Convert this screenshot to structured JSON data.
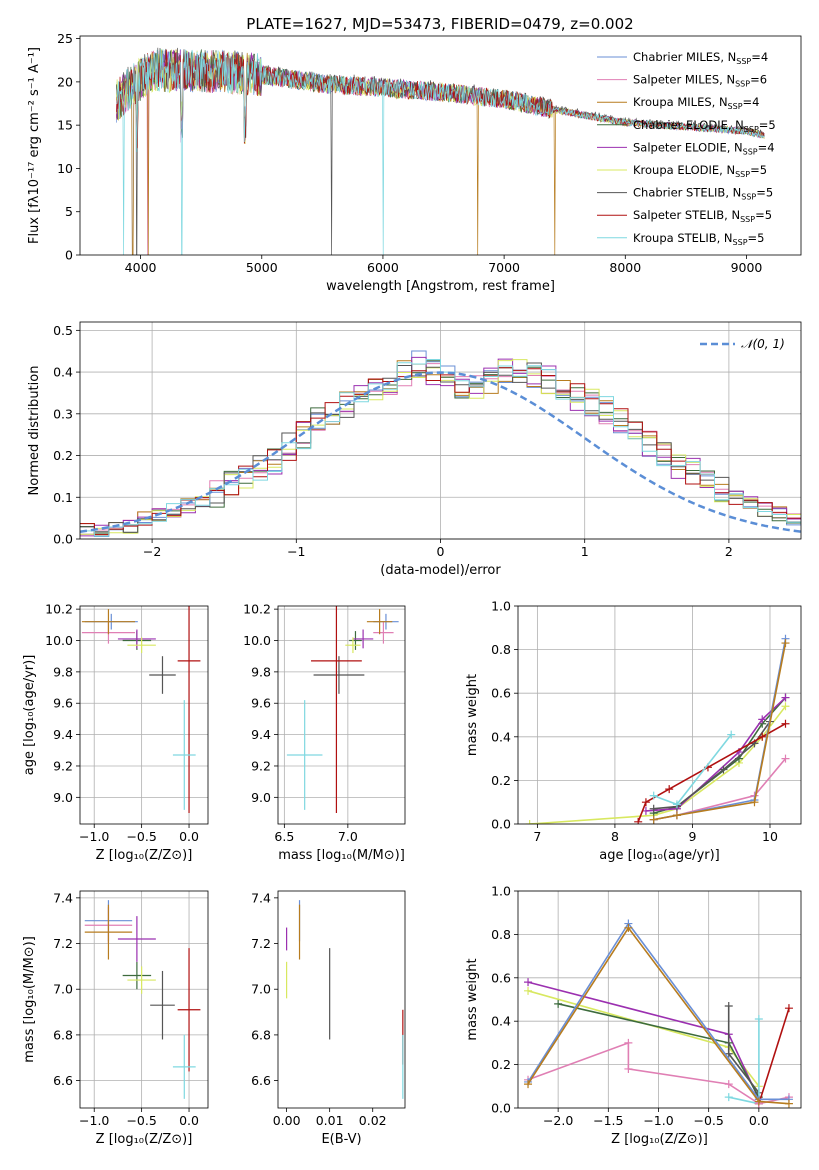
{
  "title": "PLATE=1627, MJD=53473, FIBERID=0479, z=0.002",
  "colors": {
    "Chabrier MILES": "#6a8fd6",
    "Salpeter MILES": "#e07fb4",
    "Kroupa MILES": "#b77c1f",
    "Chabrier ELODIE": "#3d6b3d",
    "Salpeter ELODIE": "#9b30b0",
    "Kroupa ELODIE": "#d8e860",
    "Chabrier STELIB": "#555555",
    "Salpeter STELIB": "#b01010",
    "Kroupa STELIB": "#7fd8e0"
  },
  "chart_data": [
    {
      "id": "spectrum",
      "type": "line",
      "xlabel": "wavelength [Angstrom, rest frame]",
      "ylabel": "Flux [fλ10⁻¹⁷ erg cm⁻² s⁻¹ A⁻¹]",
      "xlim": [
        3500,
        9450
      ],
      "ylim": [
        0,
        25.3
      ],
      "xticks": [
        4000,
        5000,
        6000,
        7000,
        8000,
        9000
      ],
      "yticks": [
        0,
        5,
        10,
        15,
        20,
        25
      ],
      "legend": [
        {
          "name": "Chabrier MILES",
          "nssp": "4"
        },
        {
          "name": "Salpeter MILES",
          "nssp": "6"
        },
        {
          "name": "Kroupa MILES",
          "nssp": "4"
        },
        {
          "name": "Chabrier ELODIE",
          "nssp": "5"
        },
        {
          "name": "Salpeter ELODIE",
          "nssp": "4"
        },
        {
          "name": "Kroupa ELODIE",
          "nssp": "5"
        },
        {
          "name": "Chabrier STELIB",
          "nssp": "5"
        },
        {
          "name": "Salpeter STELIB",
          "nssp": "5"
        },
        {
          "name": "Kroupa STELIB",
          "nssp": "5"
        }
      ],
      "legend_position": "upper right",
      "continuum": [
        [
          3800,
          18
        ],
        [
          3950,
          20
        ],
        [
          4100,
          21.5
        ],
        [
          4500,
          21.5
        ],
        [
          5000,
          21
        ],
        [
          5500,
          20
        ],
        [
          6000,
          19.5
        ],
        [
          6500,
          19
        ],
        [
          7000,
          18.2
        ],
        [
          7400,
          17
        ],
        [
          8000,
          15.5
        ],
        [
          8500,
          15
        ],
        [
          9000,
          14.5
        ],
        [
          9150,
          14
        ]
      ],
      "grid": false
    },
    {
      "id": "residuals",
      "type": "histogram",
      "xlabel": "(data-model)/error",
      "ylabel": "Normed distribution",
      "xlim": [
        -2.5,
        2.5
      ],
      "ylim": [
        0,
        0.52
      ],
      "xticks": [
        -2,
        -1,
        0,
        1,
        2
      ],
      "yticks": [
        0.0,
        0.1,
        0.2,
        0.3,
        0.4,
        0.5
      ],
      "legend": [
        "𝒩(0, 1)"
      ],
      "legend_position": "upper right",
      "bin_width": 0.1,
      "bin_start": -2.5,
      "values": [
        0.02,
        0.02,
        0.03,
        0.03,
        0.05,
        0.06,
        0.07,
        0.08,
        0.09,
        0.11,
        0.13,
        0.15,
        0.17,
        0.19,
        0.22,
        0.25,
        0.28,
        0.3,
        0.32,
        0.34,
        0.36,
        0.38,
        0.4,
        0.42,
        0.4,
        0.39,
        0.37,
        0.36,
        0.38,
        0.41,
        0.4,
        0.39,
        0.38,
        0.36,
        0.34,
        0.33,
        0.31,
        0.28,
        0.26,
        0.23,
        0.2,
        0.18,
        0.16,
        0.14,
        0.12,
        0.1,
        0.09,
        0.07,
        0.06,
        0.05
      ],
      "grid": true
    },
    {
      "id": "age-vs-Z",
      "type": "errorbar",
      "xlabel": "Z [log₁₀(Z/Z⊙)]",
      "ylabel": "age  [log₁₀(age/yr)]",
      "xlim": [
        -1.15,
        0.2
      ],
      "ylim": [
        8.83,
        10.22
      ],
      "xticks": [
        -1.0,
        -0.5,
        0.0
      ],
      "yticks": [
        9.0,
        9.2,
        9.4,
        9.6,
        9.8,
        10.0,
        10.2
      ],
      "points": [
        {
          "s": "Chabrier MILES",
          "x": -0.82,
          "y": 10.12,
          "xe": 0.28,
          "ye": 0.05
        },
        {
          "s": "Salpeter MILES",
          "x": -0.85,
          "y": 10.05,
          "xe": 0.28,
          "ye": 0.07
        },
        {
          "s": "Kroupa MILES",
          "x": -0.85,
          "y": 10.12,
          "xe": 0.28,
          "ye": 0.08
        },
        {
          "s": "Chabrier ELODIE",
          "x": -0.55,
          "y": 10.0,
          "xe": 0.15,
          "ye": 0.06
        },
        {
          "s": "Salpeter ELODIE",
          "x": -0.55,
          "y": 10.01,
          "xe": 0.2,
          "ye": 0.06
        },
        {
          "s": "Kroupa ELODIE",
          "x": -0.5,
          "y": 9.97,
          "xe": 0.15,
          "ye": 0.05
        },
        {
          "s": "Chabrier STELIB",
          "x": -0.28,
          "y": 9.78,
          "xe": 0.14,
          "ye": 0.12
        },
        {
          "s": "Salpeter STELIB",
          "x": 0.0,
          "y": 9.87,
          "xe": 0.12,
          "ye": 0.97
        },
        {
          "s": "Kroupa STELIB",
          "x": -0.05,
          "y": 9.27,
          "xe": 0.12,
          "ye": 0.35
        }
      ],
      "grid": true
    },
    {
      "id": "age-vs-mass",
      "type": "errorbar",
      "xlabel": "mass [log₁₀(M/M⊙)]",
      "ylabel": "",
      "xlim": [
        6.45,
        7.45
      ],
      "ylim": [
        8.83,
        10.22
      ],
      "xticks": [
        6.5,
        7.0
      ],
      "yticks": [
        9.0,
        9.2,
        9.4,
        9.6,
        9.8,
        10.0,
        10.2
      ],
      "points": [
        {
          "s": "Chabrier MILES",
          "x": 7.3,
          "y": 10.12,
          "xe": 0.1,
          "ye": 0.05
        },
        {
          "s": "Salpeter MILES",
          "x": 7.28,
          "y": 10.05,
          "xe": 0.08,
          "ye": 0.07
        },
        {
          "s": "Kroupa MILES",
          "x": 7.25,
          "y": 10.12,
          "xe": 0.1,
          "ye": 0.08
        },
        {
          "s": "Chabrier ELODIE",
          "x": 7.06,
          "y": 10.0,
          "xe": 0.05,
          "ye": 0.06
        },
        {
          "s": "Salpeter ELODIE",
          "x": 7.12,
          "y": 10.01,
          "xe": 0.08,
          "ye": 0.06
        },
        {
          "s": "Kroupa ELODIE",
          "x": 7.04,
          "y": 9.97,
          "xe": 0.06,
          "ye": 0.05
        },
        {
          "s": "Chabrier STELIB",
          "x": 6.93,
          "y": 9.78,
          "xe": 0.2,
          "ye": 0.12
        },
        {
          "s": "Salpeter STELIB",
          "x": 6.91,
          "y": 9.87,
          "xe": 0.2,
          "ye": 0.97
        },
        {
          "s": "Kroupa STELIB",
          "x": 6.66,
          "y": 9.27,
          "xe": 0.14,
          "ye": 0.35
        }
      ],
      "grid": true
    },
    {
      "id": "mass-weight-vs-age",
      "type": "line",
      "xlabel": "age  [log₁₀(age/yr)]",
      "ylabel": "mass weight",
      "xlim": [
        6.75,
        10.4
      ],
      "ylim": [
        0,
        1.0
      ],
      "xticks": [
        7,
        8,
        9,
        10
      ],
      "yticks": [
        0.0,
        0.2,
        0.4,
        0.6,
        0.8,
        1.0
      ],
      "series": [
        {
          "s": "Kroupa ELODIE",
          "x": [
            6.9,
            8.5,
            8.8,
            9.6,
            9.9,
            10.2
          ],
          "y": [
            0.0,
            0.04,
            0.07,
            0.28,
            0.4,
            0.54
          ]
        },
        {
          "s": "Chabrier ELODIE",
          "x": [
            8.5,
            8.8,
            9.6,
            9.9,
            10.2
          ],
          "y": [
            0.05,
            0.08,
            0.3,
            0.46,
            0.58
          ]
        },
        {
          "s": "Salpeter ELODIE",
          "x": [
            8.4,
            8.8,
            9.6,
            9.9,
            10.2
          ],
          "y": [
            0.06,
            0.07,
            0.33,
            0.48,
            0.58
          ]
        },
        {
          "s": "Chabrier STELIB",
          "x": [
            8.5,
            8.8,
            9.4,
            9.8,
            10.0
          ],
          "y": [
            0.07,
            0.08,
            0.25,
            0.37,
            0.47
          ]
        },
        {
          "s": "Salpeter STELIB",
          "x": [
            8.3,
            8.4,
            8.7,
            9.2,
            9.9,
            10.2
          ],
          "y": [
            0.01,
            0.1,
            0.16,
            0.26,
            0.4,
            0.46
          ]
        },
        {
          "s": "Kroupa STELIB",
          "x": [
            8.5,
            8.8,
            9.5
          ],
          "y": [
            0.13,
            0.09,
            0.41
          ]
        },
        {
          "s": "Salpeter MILES",
          "x": [
            8.5,
            8.8,
            9.8,
            10.2
          ],
          "y": [
            0.02,
            0.04,
            0.13,
            0.3
          ]
        },
        {
          "s": "Chabrier MILES",
          "x": [
            8.5,
            8.8,
            9.8,
            10.2
          ],
          "y": [
            0.02,
            0.04,
            0.11,
            0.85
          ]
        },
        {
          "s": "Kroupa MILES",
          "x": [
            8.5,
            8.8,
            9.8,
            10.2
          ],
          "y": [
            0.02,
            0.04,
            0.1,
            0.83
          ]
        }
      ],
      "grid": true
    },
    {
      "id": "mass-vs-Z",
      "type": "errorbar",
      "xlabel": "Z [log₁₀(Z/Z⊙)]",
      "ylabel": "mass [log₁₀(M/M⊙)]",
      "xlim": [
        -1.15,
        0.2
      ],
      "ylim": [
        6.48,
        7.43
      ],
      "xticks": [
        -1.0,
        -0.5,
        0.0
      ],
      "yticks": [
        6.6,
        6.8,
        7.0,
        7.2,
        7.4
      ],
      "points": [
        {
          "s": "Chabrier MILES",
          "x": -0.85,
          "y": 7.3,
          "xe": 0.25,
          "ye": 0.09
        },
        {
          "s": "Salpeter MILES",
          "x": -0.85,
          "y": 7.28,
          "xe": 0.25,
          "ye": 0.08
        },
        {
          "s": "Kroupa MILES",
          "x": -0.85,
          "y": 7.25,
          "xe": 0.25,
          "ye": 0.12
        },
        {
          "s": "Chabrier ELODIE",
          "x": -0.55,
          "y": 7.06,
          "xe": 0.15,
          "ye": 0.06
        },
        {
          "s": "Salpeter ELODIE",
          "x": -0.55,
          "y": 7.22,
          "xe": 0.2,
          "ye": 0.1
        },
        {
          "s": "Kroupa ELODIE",
          "x": -0.5,
          "y": 7.04,
          "xe": 0.15,
          "ye": 0.06
        },
        {
          "s": "Chabrier STELIB",
          "x": -0.28,
          "y": 6.93,
          "xe": 0.13,
          "ye": 0.15
        },
        {
          "s": "Salpeter STELIB",
          "x": 0.0,
          "y": 6.91,
          "xe": 0.12,
          "ye": 0.27
        },
        {
          "s": "Kroupa STELIB",
          "x": -0.05,
          "y": 6.66,
          "xe": 0.12,
          "ye": 0.14
        }
      ],
      "grid": true
    },
    {
      "id": "mass-vs-EBV",
      "type": "errorbar",
      "xlabel": "E(B-V)",
      "ylabel": "",
      "xlim": [
        -0.002,
        0.0275
      ],
      "ylim": [
        6.48,
        7.43
      ],
      "xticks": [
        0.0,
        0.01,
        0.02
      ],
      "yticks": [
        6.6,
        6.8,
        7.0,
        7.2,
        7.4
      ],
      "points": [
        {
          "s": "Chabrier MILES",
          "x": 0.003,
          "y": 7.3,
          "xe": 0,
          "ye": 0.09
        },
        {
          "s": "Kroupa MILES",
          "x": 0.003,
          "y": 7.25,
          "xe": 0,
          "ye": 0.12
        },
        {
          "s": "Salpeter ELODIE",
          "x": 0.0,
          "y": 7.22,
          "xe": 0,
          "ye": 0.05
        },
        {
          "s": "Kroupa ELODIE",
          "x": 0.0,
          "y": 7.04,
          "xe": 0,
          "ye": 0.08
        },
        {
          "s": "Chabrier STELIB",
          "x": 0.01,
          "y": 6.98,
          "xe": 0,
          "ye": 0.2
        },
        {
          "s": "Salpeter STELIB",
          "x": 0.027,
          "y": 6.79,
          "xe": 0,
          "ye": 0.12
        },
        {
          "s": "Kroupa STELIB",
          "x": 0.027,
          "y": 6.66,
          "xe": 0,
          "ye": 0.14
        }
      ],
      "grid": false
    },
    {
      "id": "mass-weight-vs-Z",
      "type": "line",
      "xlabel": "Z [log₁₀(Z/Z⊙)]",
      "ylabel": "mass weight",
      "xlim": [
        -2.4,
        0.42
      ],
      "ylim": [
        0,
        1.0
      ],
      "xticks": [
        -2.0,
        -1.5,
        -1.0,
        -0.5,
        0.0
      ],
      "yticks": [
        0.0,
        0.2,
        0.4,
        0.6,
        0.8,
        1.0
      ],
      "series": [
        {
          "s": "Kroupa ELODIE",
          "x": [
            -2.3,
            -0.3,
            0.0
          ],
          "y": [
            0.54,
            0.28,
            0.1
          ]
        },
        {
          "s": "Salpeter ELODIE",
          "x": [
            -2.3,
            -0.3,
            0.0
          ],
          "y": [
            0.58,
            0.34,
            0.04
          ]
        },
        {
          "s": "Chabrier ELODIE",
          "x": [
            -2.0,
            -0.3,
            0.0
          ],
          "y": [
            0.48,
            0.3,
            0.05
          ]
        },
        {
          "s": "Chabrier STELIB",
          "x": [
            -0.3,
            -0.3,
            0.0
          ],
          "y": [
            0.47,
            0.25,
            0.07
          ]
        },
        {
          "s": "Kroupa STELIB",
          "x": [
            0.0,
            0.0,
            -0.3
          ],
          "y": [
            0.41,
            0.02,
            0.05
          ]
        },
        {
          "s": "Salpeter STELIB",
          "x": [
            0.0,
            0.3
          ],
          "y": [
            0.02,
            0.46
          ]
        },
        {
          "s": "Salpeter MILES",
          "x": [
            -2.3,
            -1.3,
            -1.3,
            -0.3,
            0.0,
            0.3
          ],
          "y": [
            0.13,
            0.3,
            0.18,
            0.11,
            0.02,
            0.05
          ]
        },
        {
          "s": "Chabrier MILES",
          "x": [
            -2.3,
            -1.3,
            0.0,
            0.3
          ],
          "y": [
            0.12,
            0.85,
            0.04,
            0.04
          ]
        },
        {
          "s": "Kroupa MILES",
          "x": [
            -2.3,
            -1.3,
            0.0,
            0.3
          ],
          "y": [
            0.11,
            0.83,
            0.03,
            0.02
          ]
        }
      ],
      "grid": true
    }
  ]
}
